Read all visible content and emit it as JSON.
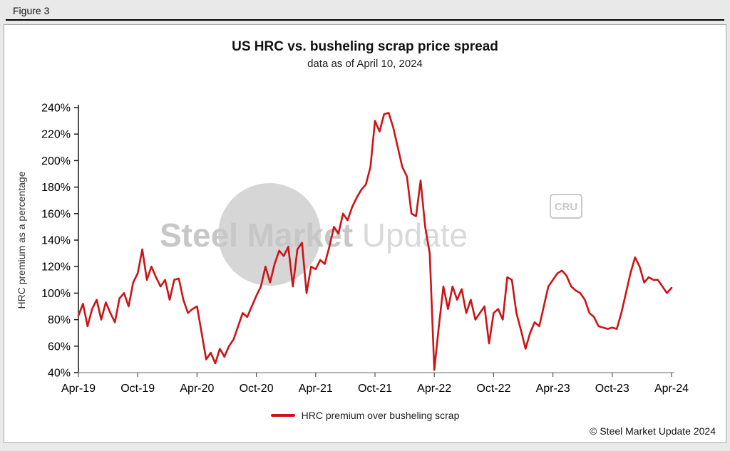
{
  "figure_label": "Figure 3",
  "chart": {
    "title": "US HRC vs. busheling scrap price spread",
    "subtitle": "data as of April 10, 2024",
    "legend": "HRC premium over busheling scrap"
  },
  "watermark": {
    "part1": "Steel Market",
    "part2": "Update",
    "badge": "CRU"
  },
  "copyright": "© Steel Market Update 2024",
  "chart_data": {
    "type": "line",
    "title": "US HRC vs. busheling scrap price spread",
    "subtitle": "data as of April 10, 2024",
    "xlabel": "",
    "ylabel": "HRC premium as a percentage",
    "ylim": [
      40,
      240
    ],
    "y_tick_step": 20,
    "y_tick_suffix": "%",
    "x_tick_labels": [
      "Apr-19",
      "Oct-19",
      "Apr-20",
      "Oct-20",
      "Apr-21",
      "Oct-21",
      "Apr-22",
      "Oct-22",
      "Apr-23",
      "Oct-23",
      "Apr-24"
    ],
    "x_range_months": [
      0,
      60
    ],
    "grid": false,
    "legend_position": "bottom",
    "line_color": "#cc1316",
    "series": [
      {
        "name": "HRC premium over busheling scrap",
        "note": "values in percent, uniformly spaced weekly-biweekly from Apr-2019 to Apr-2024",
        "values": [
          83,
          92,
          75,
          88,
          95,
          80,
          93,
          85,
          78,
          96,
          100,
          90,
          108,
          115,
          133,
          110,
          120,
          112,
          105,
          110,
          95,
          110,
          111,
          95,
          85,
          88,
          90,
          70,
          50,
          55,
          47,
          58,
          52,
          60,
          65,
          75,
          85,
          82,
          90,
          98,
          105,
          120,
          108,
          122,
          132,
          128,
          135,
          105,
          133,
          138,
          100,
          120,
          118,
          125,
          122,
          135,
          150,
          145,
          160,
          155,
          165,
          172,
          178,
          182,
          195,
          230,
          222,
          235,
          236,
          225,
          210,
          195,
          188,
          160,
          158,
          185,
          150,
          130,
          42,
          75,
          105,
          88,
          105,
          95,
          103,
          85,
          95,
          80,
          85,
          90,
          62,
          85,
          88,
          80,
          112,
          110,
          85,
          72,
          58,
          70,
          78,
          75,
          90,
          105,
          110,
          115,
          117,
          113,
          105,
          102,
          100,
          95,
          85,
          82,
          75,
          74,
          73,
          74,
          73,
          85,
          100,
          115,
          127,
          120,
          108,
          112,
          110,
          110,
          105,
          100,
          104
        ]
      }
    ]
  }
}
